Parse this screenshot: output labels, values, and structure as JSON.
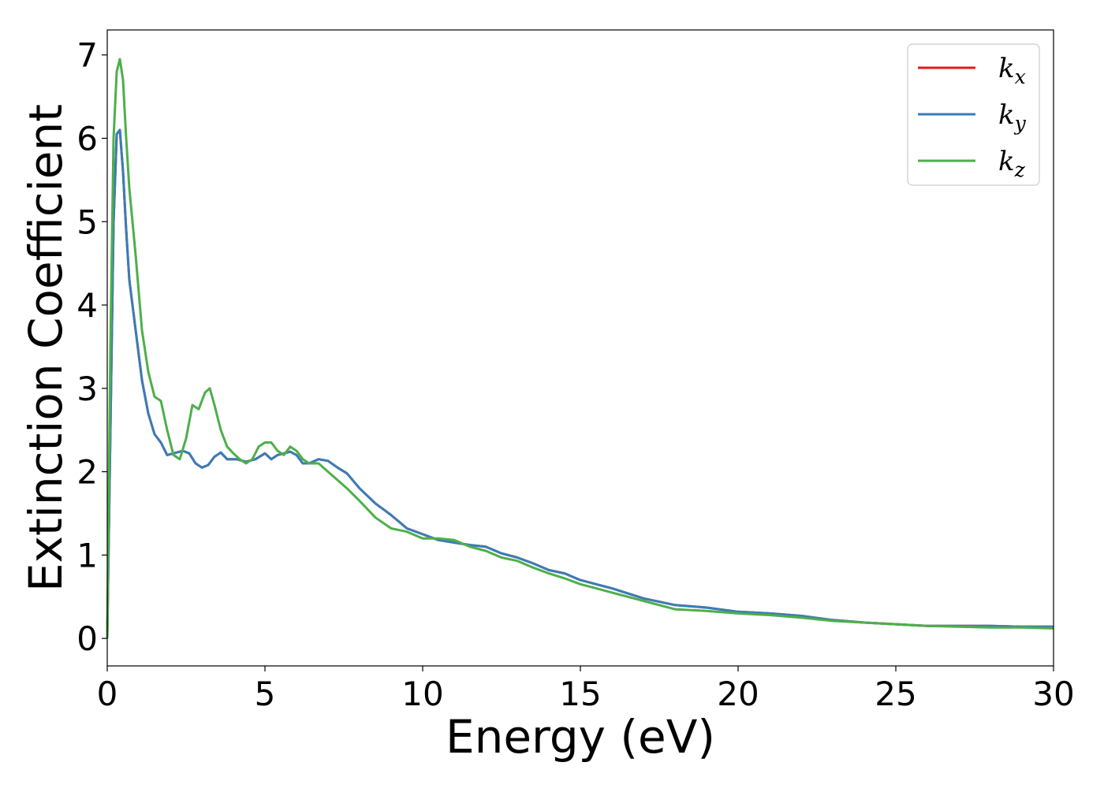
{
  "chart_data": {
    "type": "line",
    "xlabel": "Energy (eV)",
    "ylabel": "Extinction Coefficient",
    "xlim": [
      0,
      30
    ],
    "ylim": [
      -0.33,
      7.3
    ],
    "x_ticks": [
      "0",
      "5",
      "10",
      "15",
      "20",
      "25",
      "30"
    ],
    "y_ticks": [
      "0",
      "1",
      "2",
      "3",
      "4",
      "5",
      "6",
      "7"
    ],
    "x_tick_values": [
      0,
      5,
      10,
      15,
      20,
      25,
      30
    ],
    "y_tick_values": [
      0,
      1,
      2,
      3,
      4,
      5,
      6,
      7
    ],
    "grid": false,
    "legend_position": "top-right",
    "series": [
      {
        "name": "k_x",
        "label_base": "k",
        "label_sub": "x",
        "color": "#e41a1c",
        "x": [
          0,
          0.1,
          0.2,
          0.3,
          0.4,
          0.5,
          0.6,
          0.7,
          0.9,
          1.1,
          1.3,
          1.5,
          1.7,
          1.9,
          2.1,
          2.4,
          2.6,
          2.8,
          3.0,
          3.2,
          3.4,
          3.6,
          3.8,
          4.1,
          4.4,
          4.7,
          5.0,
          5.2,
          5.4,
          5.6,
          5.8,
          6.0,
          6.2,
          6.4,
          6.7,
          7.0,
          7.3,
          7.6,
          8.0,
          8.5,
          9.0,
          9.5,
          10.0,
          10.5,
          11.0,
          11.5,
          12.0,
          12.5,
          13.0,
          13.5,
          14.0,
          14.5,
          15.0,
          15.5,
          16.0,
          17.0,
          18.0,
          19.0,
          20.0,
          21.0,
          22.0,
          23.0,
          24.0,
          25.0,
          26.0,
          27.0,
          28.0,
          29.0,
          30.0
        ],
        "y": [
          0,
          2.5,
          5.0,
          6.05,
          6.1,
          5.6,
          4.9,
          4.3,
          3.7,
          3.1,
          2.7,
          2.45,
          2.35,
          2.2,
          2.22,
          2.25,
          2.22,
          2.1,
          2.05,
          2.08,
          2.18,
          2.23,
          2.15,
          2.15,
          2.12,
          2.15,
          2.22,
          2.15,
          2.2,
          2.22,
          2.24,
          2.2,
          2.1,
          2.1,
          2.15,
          2.13,
          2.05,
          1.98,
          1.8,
          1.62,
          1.48,
          1.32,
          1.25,
          1.18,
          1.15,
          1.12,
          1.1,
          1.02,
          0.97,
          0.9,
          0.82,
          0.78,
          0.7,
          0.65,
          0.6,
          0.48,
          0.4,
          0.37,
          0.32,
          0.3,
          0.27,
          0.22,
          0.19,
          0.17,
          0.15,
          0.15,
          0.15,
          0.14,
          0.14
        ]
      },
      {
        "name": "k_y",
        "label_base": "k",
        "label_sub": "y",
        "color": "#377eb8",
        "x": [
          0,
          0.1,
          0.2,
          0.3,
          0.4,
          0.5,
          0.6,
          0.7,
          0.9,
          1.1,
          1.3,
          1.5,
          1.7,
          1.9,
          2.1,
          2.4,
          2.6,
          2.8,
          3.0,
          3.2,
          3.4,
          3.6,
          3.8,
          4.1,
          4.4,
          4.7,
          5.0,
          5.2,
          5.4,
          5.6,
          5.8,
          6.0,
          6.2,
          6.4,
          6.7,
          7.0,
          7.3,
          7.6,
          8.0,
          8.5,
          9.0,
          9.5,
          10.0,
          10.5,
          11.0,
          11.5,
          12.0,
          12.5,
          13.0,
          13.5,
          14.0,
          14.5,
          15.0,
          15.5,
          16.0,
          17.0,
          18.0,
          19.0,
          20.0,
          21.0,
          22.0,
          23.0,
          24.0,
          25.0,
          26.0,
          27.0,
          28.0,
          29.0,
          30.0
        ],
        "y": [
          0,
          2.5,
          5.0,
          6.05,
          6.1,
          5.6,
          4.9,
          4.3,
          3.7,
          3.1,
          2.7,
          2.45,
          2.35,
          2.2,
          2.22,
          2.25,
          2.22,
          2.1,
          2.05,
          2.08,
          2.18,
          2.23,
          2.15,
          2.15,
          2.12,
          2.15,
          2.22,
          2.15,
          2.2,
          2.22,
          2.24,
          2.2,
          2.1,
          2.1,
          2.15,
          2.13,
          2.05,
          1.98,
          1.8,
          1.62,
          1.48,
          1.32,
          1.25,
          1.18,
          1.15,
          1.12,
          1.1,
          1.02,
          0.97,
          0.9,
          0.82,
          0.78,
          0.7,
          0.65,
          0.6,
          0.48,
          0.4,
          0.37,
          0.32,
          0.3,
          0.27,
          0.22,
          0.19,
          0.17,
          0.15,
          0.15,
          0.15,
          0.14,
          0.14
        ]
      },
      {
        "name": "k_z",
        "label_base": "k",
        "label_sub": "z",
        "color": "#4daf4a",
        "x": [
          0,
          0.1,
          0.2,
          0.3,
          0.4,
          0.5,
          0.6,
          0.7,
          0.9,
          1.1,
          1.3,
          1.5,
          1.7,
          1.9,
          2.1,
          2.3,
          2.5,
          2.7,
          2.9,
          3.1,
          3.25,
          3.4,
          3.6,
          3.8,
          4.0,
          4.2,
          4.4,
          4.6,
          4.8,
          5.0,
          5.2,
          5.4,
          5.6,
          5.8,
          6.0,
          6.2,
          6.4,
          6.7,
          7.0,
          7.3,
          7.6,
          8.0,
          8.5,
          9.0,
          9.5,
          10.0,
          10.5,
          11.0,
          11.5,
          12.0,
          12.5,
          13.0,
          13.5,
          14.0,
          14.5,
          15.0,
          15.5,
          16.0,
          17.0,
          18.0,
          19.0,
          20.0,
          21.0,
          22.0,
          23.0,
          24.0,
          25.0,
          26.0,
          27.0,
          28.0,
          29.0,
          30.0
        ],
        "y": [
          0,
          3.5,
          6.0,
          6.8,
          6.95,
          6.7,
          6.0,
          5.4,
          4.6,
          3.7,
          3.2,
          2.9,
          2.85,
          2.5,
          2.2,
          2.15,
          2.4,
          2.8,
          2.75,
          2.95,
          3.0,
          2.8,
          2.5,
          2.3,
          2.22,
          2.15,
          2.1,
          2.15,
          2.3,
          2.35,
          2.35,
          2.25,
          2.2,
          2.3,
          2.25,
          2.15,
          2.1,
          2.1,
          2.0,
          1.9,
          1.8,
          1.65,
          1.45,
          1.32,
          1.28,
          1.2,
          1.2,
          1.18,
          1.1,
          1.05,
          0.97,
          0.93,
          0.85,
          0.78,
          0.72,
          0.65,
          0.6,
          0.55,
          0.45,
          0.35,
          0.33,
          0.3,
          0.28,
          0.25,
          0.21,
          0.19,
          0.17,
          0.15,
          0.14,
          0.13,
          0.13,
          0.12
        ]
      }
    ]
  }
}
